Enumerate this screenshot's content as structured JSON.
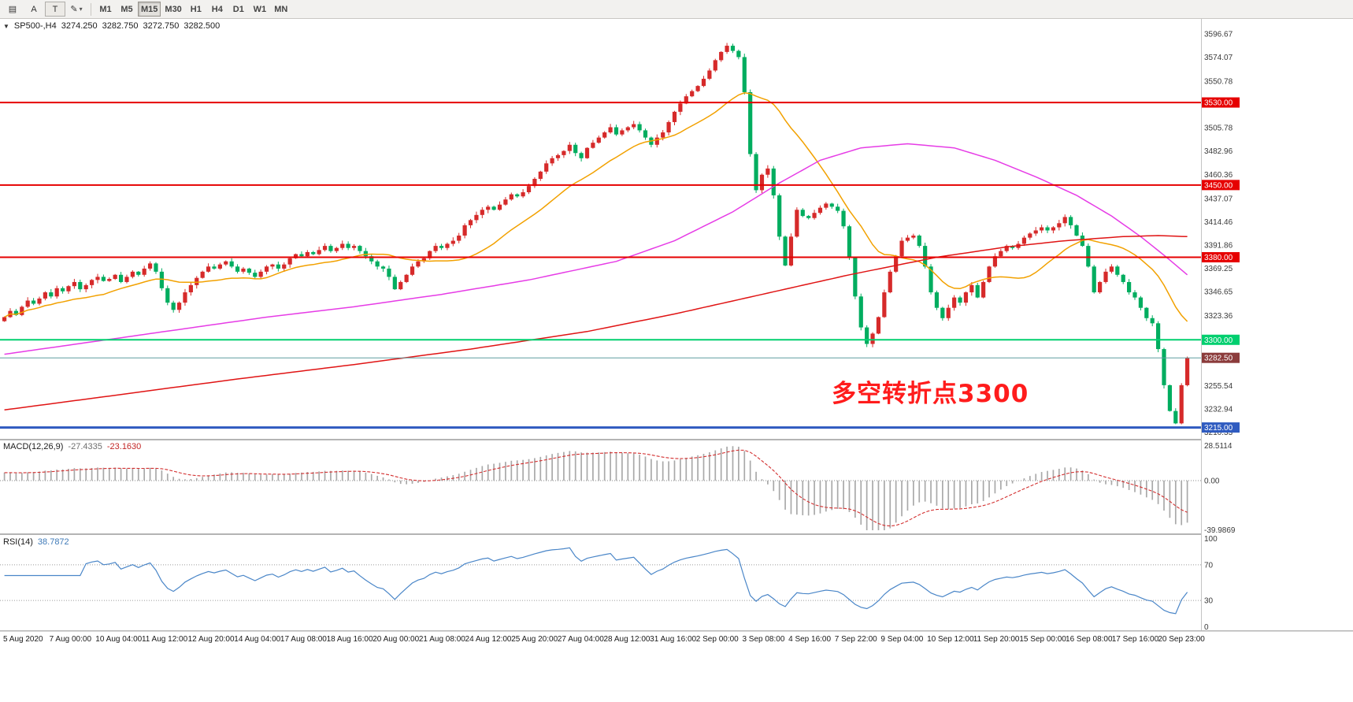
{
  "toolbar": {
    "tools": [
      {
        "glyph": "▤"
      },
      {
        "glyph": "A"
      },
      {
        "glyph": "T"
      },
      {
        "glyph": "✎",
        "caret": "▾"
      }
    ],
    "timeframes": [
      "M1",
      "M5",
      "M15",
      "M30",
      "H1",
      "H4",
      "D1",
      "W1",
      "MN"
    ],
    "active_timeframe": "M15"
  },
  "chart_header": {
    "collapse_icon": "▼",
    "symbol_period": "SP500-,H4",
    "open": "3274.250",
    "high": "3282.750",
    "low": "3272.750",
    "close": "3282.500"
  },
  "annotation": {
    "text": "多空转折点3300"
  },
  "indicators": {
    "macd": {
      "label": "MACD(12,26,9)",
      "value_main": "-27.4335",
      "value_signal": "-23.1630",
      "axis_max": "28.5114",
      "axis_zero": "0.00",
      "axis_min": "-39.9869"
    },
    "rsi": {
      "label": "RSI(14)",
      "value": "38.7872",
      "axis": [
        "100",
        "70",
        "30",
        "0"
      ],
      "levels": [
        70,
        30
      ],
      "period": 14
    }
  },
  "chart_data": {
    "type": "candlestick",
    "symbol": "SP500-",
    "period": "H4",
    "ylim": [
      3204,
      3611
    ],
    "first_open": 3318,
    "closes": [
      3322,
      3328,
      3324,
      3332,
      3338,
      3335,
      3340,
      3346,
      3342,
      3350,
      3347,
      3352,
      3356,
      3349,
      3353,
      3358,
      3361,
      3357,
      3359,
      3363,
      3356,
      3361,
      3366,
      3363,
      3369,
      3374,
      3366,
      3350,
      3336,
      3329,
      3336,
      3346,
      3353,
      3360,
      3366,
      3371,
      3369,
      3373,
      3376,
      3371,
      3366,
      3369,
      3365,
      3361,
      3366,
      3371,
      3373,
      3369,
      3373,
      3379,
      3383,
      3381,
      3385,
      3383,
      3387,
      3391,
      3386,
      3389,
      3393,
      3389,
      3391,
      3386,
      3381,
      3376,
      3371,
      3369,
      3361,
      3349,
      3356,
      3363,
      3371,
      3376,
      3379,
      3386,
      3391,
      3389,
      3393,
      3396,
      3401,
      3411,
      3416,
      3421,
      3426,
      3429,
      3426,
      3431,
      3436,
      3441,
      3439,
      3443,
      3449,
      3456,
      3463,
      3471,
      3476,
      3479,
      3483,
      3489,
      3481,
      3476,
      3486,
      3491,
      3496,
      3501,
      3506,
      3499,
      3503,
      3506,
      3509,
      3503,
      3496,
      3489,
      3496,
      3501,
      3511,
      3521,
      3529,
      3536,
      3541,
      3546,
      3553,
      3561,
      3571,
      3579,
      3585,
      3580,
      3574,
      3540,
      3480,
      3445,
      3460,
      3466,
      3440,
      3400,
      3372,
      3400,
      3426,
      3420,
      3418,
      3423,
      3428,
      3432,
      3429,
      3425,
      3410,
      3380,
      3342,
      3312,
      3296,
      3306,
      3322,
      3346,
      3366,
      3381,
      3396,
      3399,
      3401,
      3391,
      3371,
      3346,
      3331,
      3321,
      3331,
      3341,
      3336,
      3346,
      3353,
      3341,
      3356,
      3371,
      3381,
      3386,
      3391,
      3389,
      3393,
      3399,
      3403,
      3406,
      3409,
      3406,
      3409,
      3413,
      3419,
      3411,
      3401,
      3391,
      3371,
      3346,
      3356,
      3366,
      3371,
      3363,
      3356,
      3346,
      3341,
      3331,
      3321,
      3316,
      3291,
      3256,
      3231,
      3219,
      3256,
      3282.5
    ],
    "candle_colors": {
      "up": "#d62a2a",
      "down": "#00ad5f"
    },
    "moving_averages": [
      {
        "name": "fast",
        "type": "sma",
        "period": 18,
        "color": "#f2a100"
      },
      {
        "name": "medium",
        "type": "points",
        "color": "#e63ce6",
        "points": [
          [
            0,
            3286
          ],
          [
            15,
            3298
          ],
          [
            30,
            3310
          ],
          [
            45,
            3322
          ],
          [
            60,
            3332
          ],
          [
            75,
            3344
          ],
          [
            90,
            3358
          ],
          [
            105,
            3376
          ],
          [
            115,
            3396
          ],
          [
            125,
            3424
          ],
          [
            133,
            3452
          ],
          [
            140,
            3474
          ],
          [
            147,
            3486
          ],
          [
            155,
            3490
          ],
          [
            163,
            3486
          ],
          [
            170,
            3474
          ],
          [
            177,
            3458
          ],
          [
            184,
            3440
          ],
          [
            190,
            3420
          ],
          [
            195,
            3400
          ],
          [
            199,
            3382
          ],
          [
            203,
            3363
          ]
        ]
      },
      {
        "name": "slow",
        "type": "points",
        "color": "#e01414",
        "points": [
          [
            0,
            3232
          ],
          [
            20,
            3247
          ],
          [
            40,
            3262
          ],
          [
            60,
            3276
          ],
          [
            80,
            3291
          ],
          [
            100,
            3308
          ],
          [
            115,
            3325
          ],
          [
            130,
            3344
          ],
          [
            145,
            3363
          ],
          [
            160,
            3380
          ],
          [
            172,
            3390
          ],
          [
            182,
            3396
          ],
          [
            192,
            3400
          ],
          [
            198,
            3401
          ],
          [
            203,
            3400
          ]
        ]
      }
    ],
    "hlines": [
      {
        "price": 3530,
        "label": "3530.00",
        "color": "#e60000",
        "line_width": 2
      },
      {
        "price": 3450,
        "label": "3450.00",
        "color": "#e60000",
        "line_width": 2
      },
      {
        "price": 3380,
        "label": "3380.00",
        "color": "#e60000",
        "line_width": 2
      },
      {
        "price": 3300,
        "label": "3300.00",
        "color": "#00cf6f",
        "line_width": 2
      },
      {
        "price": 3282.5,
        "label": "3282.50",
        "color": "#5f9ea0",
        "line_width": 1,
        "tag_color": "#8b3b3b"
      },
      {
        "price": 3215,
        "label": "3215.00",
        "color": "#2f5bc0",
        "line_width": 3
      }
    ],
    "price_axis_labels": [
      "3596.67",
      "3574.07",
      "3550.78",
      "3505.78",
      "3482.96",
      "3460.36",
      "3437.07",
      "3414.46",
      "3391.86",
      "3369.25",
      "3346.65",
      "3323.36",
      "3255.54",
      "3232.94",
      "3210.33"
    ],
    "macd_range": [
      -39.9869,
      28.5114
    ],
    "rsi_range": [
      0,
      100
    ],
    "x_labels": [
      "5 Aug 2020",
      "7 Aug 00:00",
      "10 Aug 04:00",
      "11 Aug 12:00",
      "12 Aug 20:00",
      "14 Aug 04:00",
      "17 Aug 08:00",
      "18 Aug 16:00",
      "20 Aug 00:00",
      "21 Aug 08:00",
      "24 Aug 12:00",
      "25 Aug 20:00",
      "27 Aug 04:00",
      "28 Aug 12:00",
      "31 Aug 16:00",
      "2 Sep 00:00",
      "3 Sep 08:00",
      "4 Sep 16:00",
      "7 Sep 22:00",
      "9 Sep 04:00",
      "10 Sep 12:00",
      "11 Sep 20:00",
      "15 Sep 00:00",
      "16 Sep 08:00",
      "17 Sep 16:00",
      "20 Sep 23:00"
    ]
  }
}
